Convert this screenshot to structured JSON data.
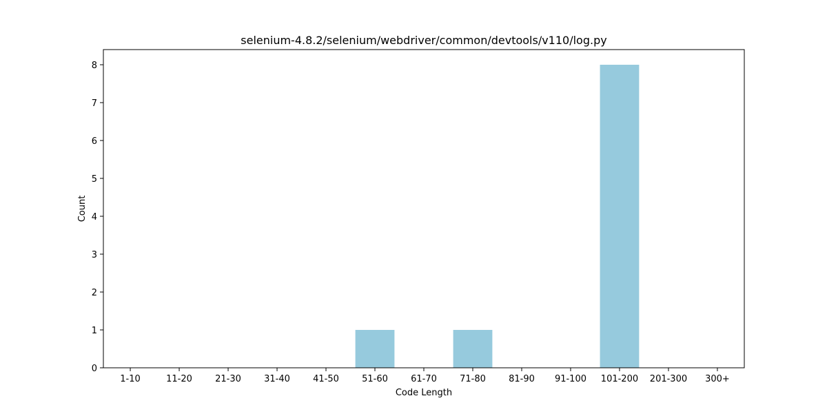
{
  "chart_data": {
    "type": "bar",
    "title": "selenium-4.8.2/selenium/webdriver/common/devtools/v110/log.py",
    "xlabel": "Code Length",
    "ylabel": "Count",
    "categories": [
      "1-10",
      "11-20",
      "21-30",
      "31-40",
      "41-50",
      "51-60",
      "61-70",
      "71-80",
      "81-90",
      "91-100",
      "101-200",
      "201-300",
      "300+"
    ],
    "values": [
      0,
      0,
      0,
      0,
      0,
      1,
      0,
      1,
      0,
      0,
      8,
      0,
      0
    ],
    "ylim": [
      0,
      8.4
    ],
    "yticks": [
      0,
      1,
      2,
      3,
      4,
      5,
      6,
      7,
      8
    ],
    "bar_color": "#96cadd",
    "grid": false,
    "legend": "none"
  }
}
